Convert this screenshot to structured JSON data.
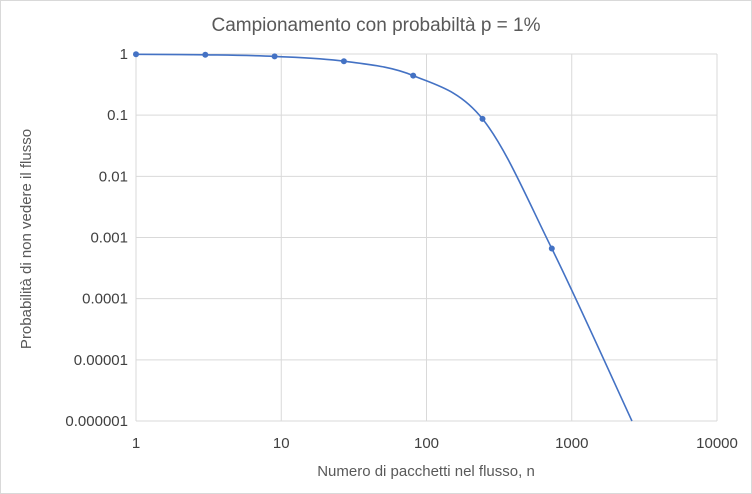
{
  "chart_data": {
    "type": "scatter",
    "title": "Campionamento con probabiltà p = 1%",
    "xlabel": "Numero di pacchetti nel flusso, n",
    "ylabel": "Probabilità di non vedere il flusso",
    "x_scale": "log",
    "y_scale": "log",
    "xlim": [
      1,
      10000
    ],
    "ylim": [
      1e-06,
      1
    ],
    "x_ticks": [
      "1",
      "10",
      "100",
      "1000",
      "10000"
    ],
    "y_ticks": [
      "1",
      "0.1",
      "0.01",
      "0.001",
      "0.0001",
      "0.00001",
      "0.000001"
    ],
    "grid": true,
    "legend": "none",
    "series_color": "#4472c4",
    "series": [
      {
        "x": [
          1,
          3,
          9,
          27,
          81,
          243,
          729
        ],
        "y": [
          0.99,
          0.9703,
          0.9135,
          0.7623,
          0.443,
          0.087,
          0.00066
        ],
        "smooth_curve": true
      }
    ]
  }
}
